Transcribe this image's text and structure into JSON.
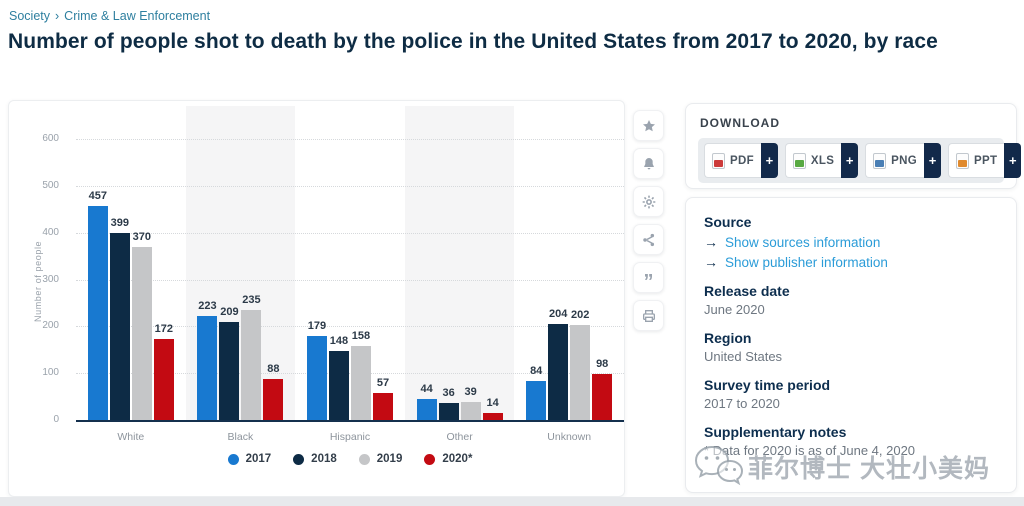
{
  "breadcrumb": {
    "items": [
      "Society",
      "Crime & Law Enforcement"
    ],
    "separator": "›"
  },
  "page_title": "Number of people shot to death by the police in the United States from 2017 to 2020, by race",
  "chart_data": {
    "type": "bar",
    "categories": [
      "White",
      "Black",
      "Hispanic",
      "Other",
      "Unknown"
    ],
    "series": [
      {
        "name": "2017",
        "color": "#1879d0",
        "values": [
          457,
          223,
          179,
          44,
          84
        ]
      },
      {
        "name": "2018",
        "color": "#0d2b45",
        "values": [
          399,
          209,
          148,
          36,
          204
        ]
      },
      {
        "name": "2019",
        "color": "#c5c6c8",
        "values": [
          370,
          235,
          158,
          39,
          202
        ]
      },
      {
        "name": "2020*",
        "color": "#c30a12",
        "values": [
          172,
          88,
          57,
          14,
          98
        ]
      }
    ],
    "title": "Number of people shot to death by the police in the United States from 2017 to 2020, by race",
    "xlabel": "",
    "ylabel": "Number of people",
    "ylim": [
      0,
      600
    ],
    "ytick_step": 100,
    "grid": "horizontal-dotted",
    "legend_position": "bottom",
    "banded_categories": [
      "Black",
      "Other"
    ]
  },
  "chart_toolbar": {
    "icons": [
      "star",
      "bell",
      "gear",
      "share",
      "cite",
      "print"
    ],
    "cite_glyph": "”"
  },
  "download": {
    "heading": "DOWNLOAD",
    "plus": "+",
    "buttons": [
      {
        "label": "PDF",
        "icon_color": "#cc3a3a"
      },
      {
        "label": "XLS",
        "icon_color": "#58a942"
      },
      {
        "label": "PNG",
        "icon_color": "#4a7fb5"
      },
      {
        "label": "PPT",
        "icon_color": "#e08a2e"
      }
    ]
  },
  "details": {
    "source": {
      "heading": "Source",
      "arrow": "→",
      "links": [
        "Show sources information",
        "Show publisher information"
      ]
    },
    "release_date": {
      "heading": "Release date",
      "value": "June 2020"
    },
    "region": {
      "heading": "Region",
      "value": "United States"
    },
    "survey_period": {
      "heading": "Survey time period",
      "value": "2017 to 2020"
    },
    "supplementary": {
      "heading": "Supplementary notes",
      "value": "* Data for 2020 is as of June 4, 2020"
    }
  },
  "watermark": {
    "text": "菲尔博士 大壮小美妈"
  }
}
